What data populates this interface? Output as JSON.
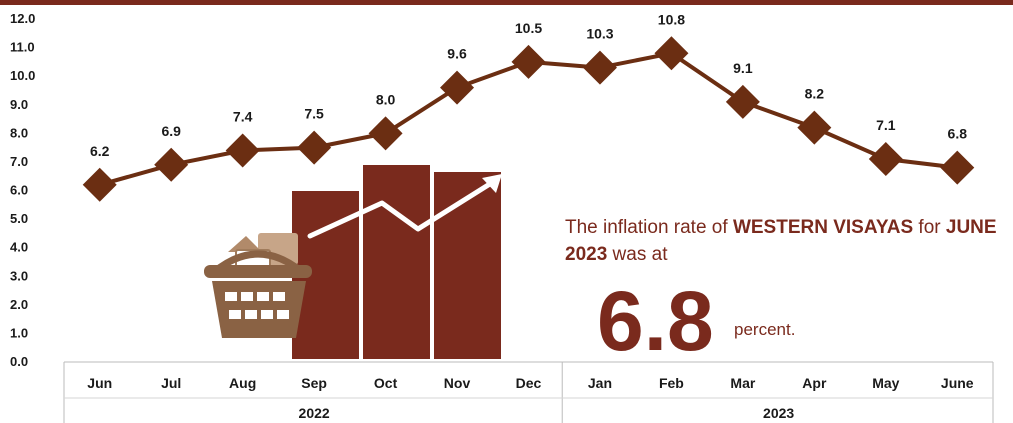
{
  "chart_data": {
    "type": "line",
    "categories": [
      "Jun",
      "Jul",
      "Aug",
      "Sep",
      "Oct",
      "Nov",
      "Dec",
      "Jan",
      "Feb",
      "Mar",
      "Apr",
      "May",
      "June"
    ],
    "groups": [
      {
        "label": "2022",
        "from": 0,
        "to": 6
      },
      {
        "label": "2023",
        "from": 7,
        "to": 12
      }
    ],
    "series": [
      {
        "values": [
          6.2,
          6.9,
          7.4,
          7.5,
          8.0,
          9.6,
          10.5,
          10.3,
          10.8,
          9.1,
          8.2,
          7.1,
          6.8
        ]
      }
    ],
    "data_labels": [
      "6.2",
      "6.9",
      "7.4",
      "7.5",
      "8.0",
      "9.6",
      "10.5",
      "10.3",
      "10.8",
      "9.1",
      "8.2",
      "7.1",
      "6.8"
    ],
    "y_ticks": [
      "0.0",
      "1.0",
      "2.0",
      "3.0",
      "4.0",
      "5.0",
      "6.0",
      "7.0",
      "8.0",
      "9.0",
      "10.0",
      "11.0",
      "12.0"
    ],
    "ylim": [
      0,
      12
    ],
    "grid": false,
    "marker": "diamond",
    "colors": {
      "line": "#6b2e12",
      "marker": "#6b2e12",
      "accent": "#7a2a1d",
      "axis": "#bbbbbb"
    }
  },
  "annotation": {
    "part1": "The inflation rate of ",
    "region": "WESTERN VISAYAS",
    "part2": " for ",
    "period": "JUNE 2023",
    "part3": " was at",
    "value": "6.8",
    "unit": "percent."
  },
  "illustration": {
    "icon": "shopping-basket-icon",
    "bars_icon": "bar-chart-growth-icon",
    "bar_color": "#7a2a1d",
    "basket_color": "#8a6244"
  }
}
